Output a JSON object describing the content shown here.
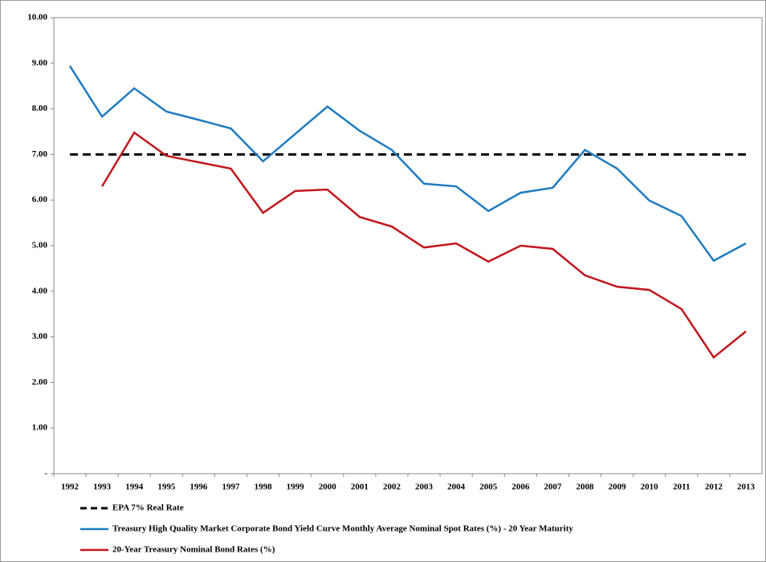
{
  "chart_data": {
    "type": "line",
    "categories": [
      "1992",
      "1993",
      "1994",
      "1995",
      "1996",
      "1997",
      "1998",
      "1999",
      "2000",
      "2001",
      "2002",
      "2003",
      "2004",
      "2005",
      "2006",
      "2007",
      "2008",
      "2009",
      "2010",
      "2011",
      "2012",
      "2013"
    ],
    "series": [
      {
        "name": "EPA 7% Real Rate",
        "color": "#000000",
        "dash": true,
        "values": [
          7,
          7,
          7,
          7,
          7,
          7,
          7,
          7,
          7,
          7,
          7,
          7,
          7,
          7,
          7,
          7,
          7,
          7,
          7,
          7,
          7,
          7
        ]
      },
      {
        "name": "Treasury High Quality Market Corporate Bond Yield Curve Monthly Average Nominal Spot Rates (%) - 20 Year Maturity",
        "color": "#1f7bc1",
        "dash": false,
        "values": [
          8.94,
          7.83,
          8.45,
          7.94,
          7.76,
          7.57,
          6.85,
          7.45,
          8.05,
          7.52,
          7.1,
          6.36,
          6.3,
          5.76,
          6.16,
          6.27,
          7.1,
          6.69,
          5.99,
          5.65,
          4.67,
          5.05
        ]
      },
      {
        "name": "20-Year Treasury Nominal Bond Rates (%)",
        "color": "#c0161c",
        "dash": false,
        "values": [
          null,
          6.3,
          7.48,
          6.97,
          6.83,
          6.69,
          5.72,
          6.2,
          6.23,
          5.63,
          5.42,
          4.96,
          5.05,
          4.65,
          5.0,
          4.93,
          4.35,
          4.1,
          4.03,
          3.61,
          2.55,
          3.12
        ]
      }
    ],
    "ylim": [
      0,
      10
    ],
    "yticks": [
      {
        "value": 0,
        "label": "-"
      },
      {
        "value": 1,
        "label": "1.00"
      },
      {
        "value": 2,
        "label": "2.00"
      },
      {
        "value": 3,
        "label": "3.00"
      },
      {
        "value": 4,
        "label": "4.00"
      },
      {
        "value": 5,
        "label": "5.00"
      },
      {
        "value": 6,
        "label": "6.00"
      },
      {
        "value": 7,
        "label": "7.00"
      },
      {
        "value": 8,
        "label": "8.00"
      },
      {
        "value": 9,
        "label": "9.00"
      },
      {
        "value": 10,
        "label": "10.00"
      }
    ],
    "grid": false,
    "legend": "bottom"
  }
}
